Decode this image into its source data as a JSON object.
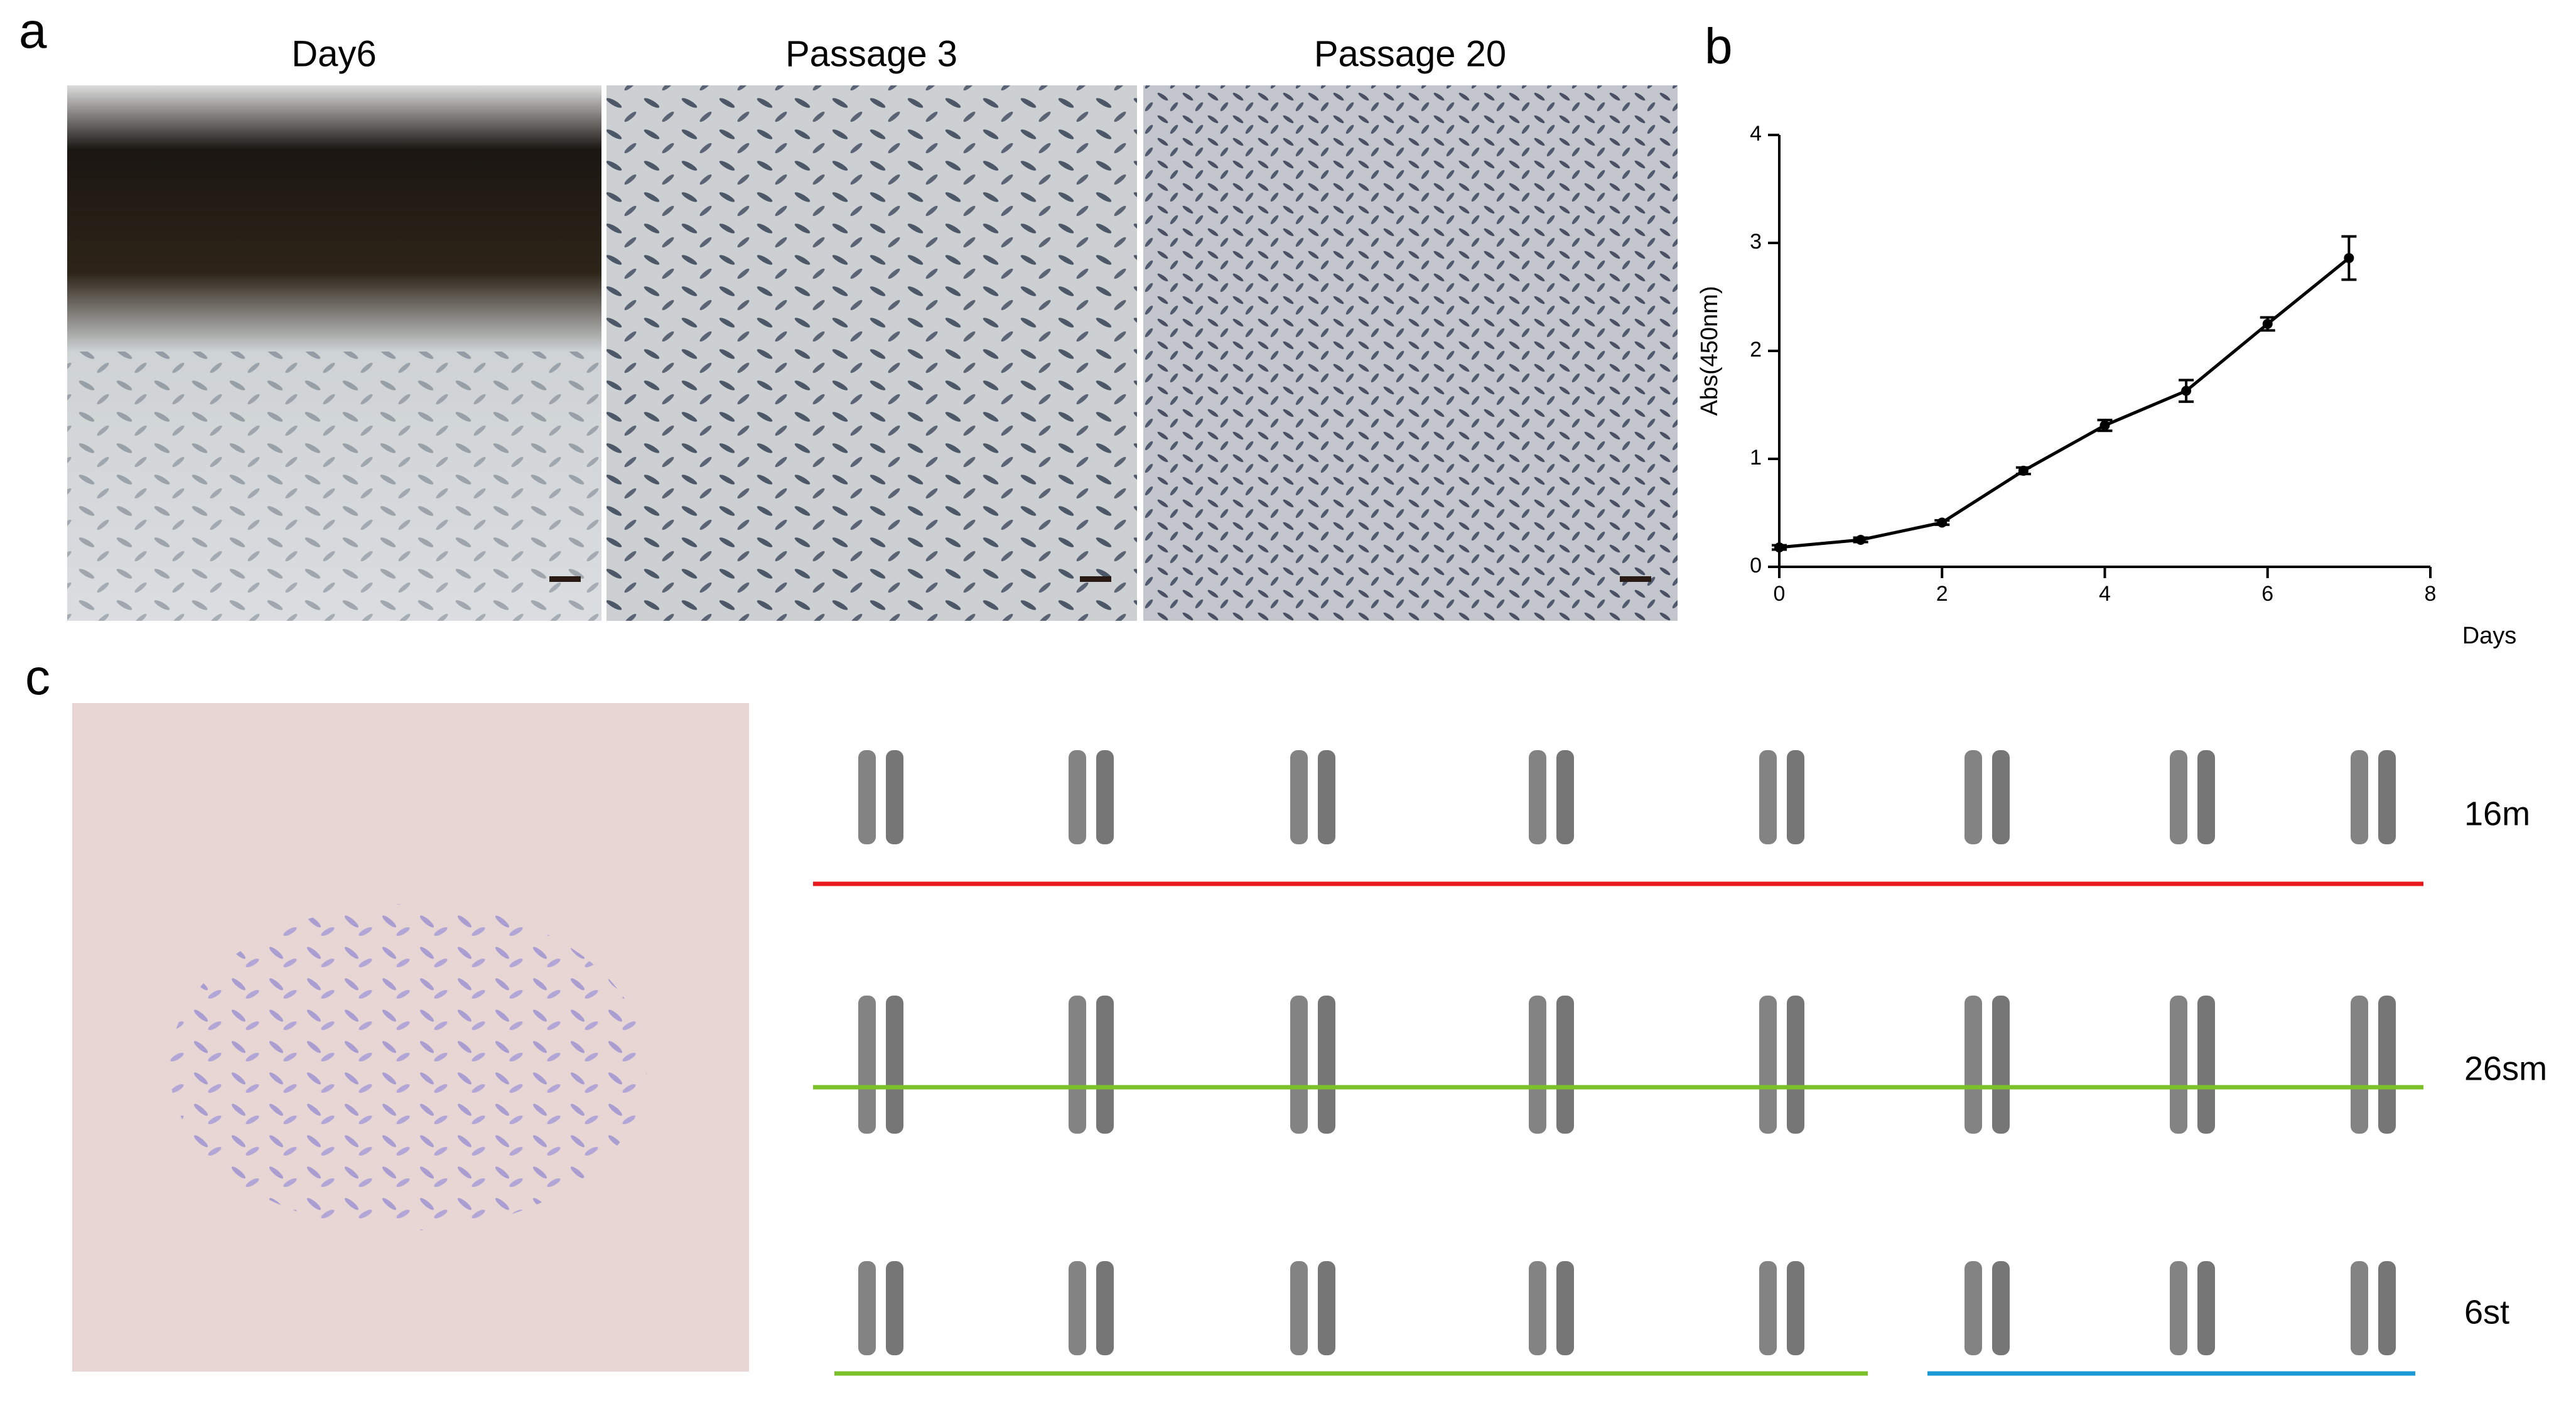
{
  "panels": {
    "a": {
      "label": "a",
      "images": [
        "Day6",
        "Passage 3",
        "Passage 20"
      ]
    },
    "b": {
      "label": "b"
    },
    "c": {
      "label": "c",
      "rows": [
        {
          "label": "16m",
          "color": "#e8191a"
        },
        {
          "label": "26sm",
          "color": "#7cc12a"
        },
        {
          "label": "6st",
          "color": "#1b9ad6"
        }
      ]
    }
  },
  "chart_data": {
    "type": "line",
    "x": [
      0,
      1,
      2,
      3,
      4,
      5,
      6,
      7
    ],
    "values": [
      0.18,
      0.25,
      0.41,
      0.89,
      1.31,
      1.63,
      2.25,
      2.86
    ],
    "errors": [
      0.02,
      0.02,
      0.02,
      0.03,
      0.05,
      0.1,
      0.06,
      0.2
    ],
    "color": "#000000",
    "xlim": [
      0,
      8
    ],
    "ylim": [
      0,
      4
    ],
    "xticks": [
      0,
      2,
      4,
      6,
      8
    ],
    "yticks": [
      0,
      1,
      2,
      3,
      4
    ],
    "xlabel": "Days",
    "ylabel": "Abs(450nm)"
  }
}
